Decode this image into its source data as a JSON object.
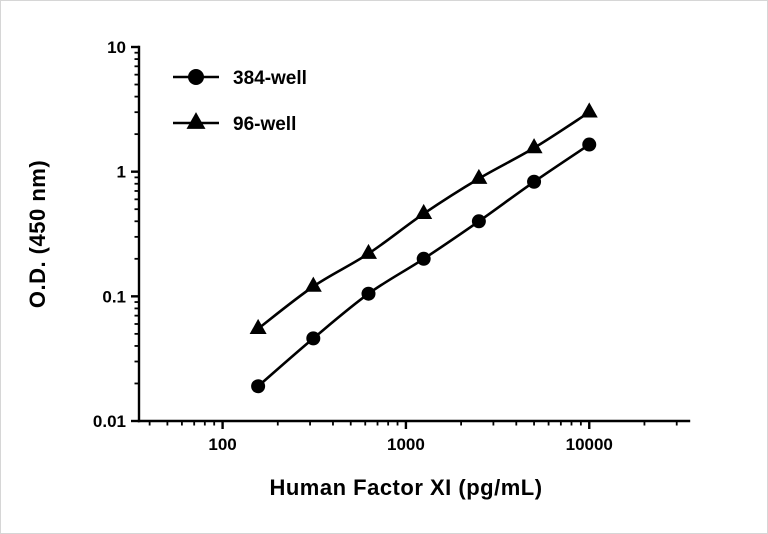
{
  "chart_data": {
    "type": "line",
    "title": "",
    "xlabel": "Human Factor XI (pg/mL)",
    "ylabel": "O.D. (450 nm)",
    "x_scale": "log",
    "y_scale": "log",
    "xlim": [
      35,
      35000
    ],
    "ylim": [
      0.01,
      10
    ],
    "x_major_ticks": [
      100,
      1000,
      10000
    ],
    "x_major_labels": [
      "100",
      "1000",
      "10000"
    ],
    "y_major_ticks": [
      0.01,
      0.1,
      1,
      10
    ],
    "y_major_labels": [
      "0.01",
      "0.1",
      "1",
      "10"
    ],
    "grid": false,
    "legend_position": "top-left-inside",
    "line_color": "#000000",
    "series": [
      {
        "name": "384-well",
        "marker": "circle",
        "color": "#000000",
        "x": [
          156.25,
          312.5,
          625,
          1250,
          2500,
          5000,
          10000
        ],
        "y": [
          0.019,
          0.046,
          0.105,
          0.2,
          0.4,
          0.83,
          1.65
        ]
      },
      {
        "name": "96-well",
        "marker": "triangle",
        "color": "#000000",
        "x": [
          156.25,
          312.5,
          625,
          1250,
          2500,
          5000,
          10000
        ],
        "y": [
          0.055,
          0.12,
          0.22,
          0.46,
          0.88,
          1.55,
          3.0
        ]
      }
    ]
  }
}
